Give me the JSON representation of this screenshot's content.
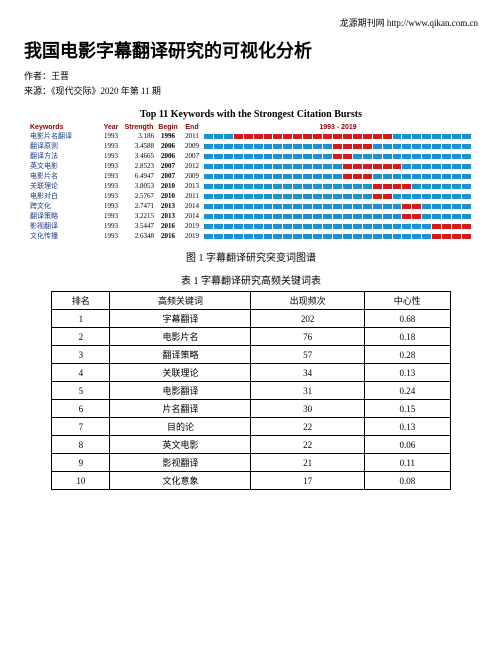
{
  "header": {
    "site": "龙源期刊网  http://www.qikan.com.cn"
  },
  "title": "我国电影字幕翻译研究的可视化分析",
  "author_label": "作者：",
  "author": "王晋",
  "source_label": "来源：",
  "source": "《现代交际》2020 年第 11 期",
  "chart": {
    "title": "Top 11 Keywords with the Strongest Citation Bursts",
    "headers": {
      "kw": "Keywords",
      "year": "Year",
      "strength": "Strength",
      "begin": "Begin",
      "end": "End",
      "range": "1993 - 2019"
    },
    "year_start": 1993,
    "year_end": 2019,
    "colors": {
      "base": "#1e90d0",
      "burst": "#d21b1b",
      "kw": "#1a3a8a",
      "head": "#8b0000"
    },
    "rows": [
      {
        "kw": "电影片名翻译",
        "year": 1993,
        "strength": "3.186",
        "begin": 1996,
        "end": 2011
      },
      {
        "kw": "翻译原则",
        "year": 1993,
        "strength": "3.4588",
        "begin": 2006,
        "end": 2009
      },
      {
        "kw": "翻译方法",
        "year": 1993,
        "strength": "3.4665",
        "begin": 2006,
        "end": 2007
      },
      {
        "kw": "英文电影",
        "year": 1993,
        "strength": "2.8523",
        "begin": 2007,
        "end": 2012
      },
      {
        "kw": "电影片名",
        "year": 1993,
        "strength": "6.4947",
        "begin": 2007,
        "end": 2009
      },
      {
        "kw": "关联理论",
        "year": 1993,
        "strength": "3.8053",
        "begin": 2010,
        "end": 2013
      },
      {
        "kw": "电影对白",
        "year": 1993,
        "strength": "2.5767",
        "begin": 2010,
        "end": 2011
      },
      {
        "kw": "跨文化",
        "year": 1993,
        "strength": "2.7471",
        "begin": 2013,
        "end": 2014
      },
      {
        "kw": "翻译策略",
        "year": 1993,
        "strength": "3.2215",
        "begin": 2013,
        "end": 2014
      },
      {
        "kw": "影视翻译",
        "year": 1993,
        "strength": "3.5447",
        "begin": 2016,
        "end": 2019
      },
      {
        "kw": "文化传播",
        "year": 1993,
        "strength": "2.6348",
        "begin": 2016,
        "end": 2019
      }
    ],
    "caption": "图 1  字幕翻译研究突变词图谱"
  },
  "table": {
    "title": "表 1  字幕翻译研究高频关键词表",
    "columns": [
      "排名",
      "高频关键词",
      "出现频次",
      "中心性"
    ],
    "rows": [
      [
        "1",
        "字幕翻译",
        "202",
        "0.68"
      ],
      [
        "2",
        "电影片名",
        "76",
        "0.18"
      ],
      [
        "3",
        "翻译策略",
        "57",
        "0.28"
      ],
      [
        "4",
        "关联理论",
        "34",
        "0.13"
      ],
      [
        "5",
        "电影翻译",
        "31",
        "0.24"
      ],
      [
        "6",
        "片名翻译",
        "30",
        "0.15"
      ],
      [
        "7",
        "目的论",
        "22",
        "0.13"
      ],
      [
        "8",
        "英文电影",
        "22",
        "0.06"
      ],
      [
        "9",
        "影视翻译",
        "21",
        "0.11"
      ],
      [
        "10",
        "文化意象",
        "17",
        "0.08"
      ]
    ]
  }
}
